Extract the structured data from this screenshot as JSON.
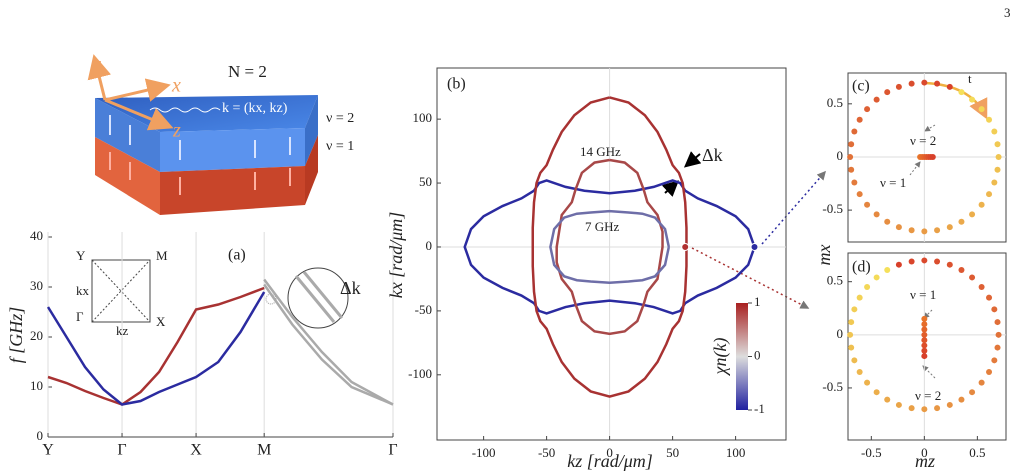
{
  "page_number": "3",
  "illustration": {
    "axis_labels": [
      "y",
      "x",
      "z"
    ],
    "layers": "N = 2",
    "wavevector": "k = (kx, kz)",
    "layer_labels": [
      "ν = 2",
      "ν = 1"
    ]
  },
  "chart_data": [
    {
      "type": "line",
      "ylabel": "f [GHz]",
      "xlim": [
        0,
        4.66
      ],
      "ylim": [
        0,
        40
      ],
      "yticks": [
        0,
        10,
        20,
        30,
        40
      ],
      "xticks": [
        {
          "value": 0,
          "label": "Y"
        },
        {
          "value": 1,
          "label": "Γ"
        },
        {
          "value": 2,
          "label": "X"
        },
        {
          "value": 2.92,
          "label": "M"
        },
        {
          "value": 4.66,
          "label": "Γ"
        }
      ],
      "grid": "x",
      "annotations": [
        "(a)",
        "Y",
        "M",
        "Γ",
        "X",
        "kx",
        "kz",
        "Δk"
      ],
      "series": [
        {
          "color": "#a83232",
          "x": [
            0,
            0.25,
            0.5,
            0.75,
            1,
            1.25,
            1.5,
            1.75,
            2,
            2.3,
            2.6,
            2.92
          ],
          "values": [
            12,
            10.8,
            9.2,
            7.8,
            6.5,
            9,
            13,
            19,
            25.5,
            26.5,
            28,
            29.8
          ]
        },
        {
          "color": "#2b2ba0",
          "x": [
            0,
            0.25,
            0.5,
            0.75,
            1,
            1.25,
            1.5,
            1.75,
            2,
            2.3,
            2.6,
            2.92
          ],
          "values": [
            26,
            20,
            14,
            9.5,
            6.5,
            7.2,
            9,
            10.5,
            12,
            15,
            21,
            29
          ]
        },
        {
          "color": "#aaaaaa",
          "x": [
            2.92,
            3.3,
            3.7,
            4.1,
            4.66
          ],
          "values": [
            31.5,
            24,
            17,
            11,
            6.5
          ]
        },
        {
          "color": "#aaaaaa",
          "x": [
            2.92,
            3.3,
            3.7,
            4.1,
            4.66
          ],
          "values": [
            30.5,
            22.5,
            15.5,
            10,
            6.5
          ]
        }
      ]
    },
    {
      "type": "line",
      "xlabel": "kz [rad/μm]",
      "ylabel": "kx [rad/μm]",
      "xlim": [
        -137,
        140
      ],
      "ylim": [
        -151,
        140
      ],
      "xticks": [
        -100,
        -50,
        0,
        50,
        100
      ],
      "yticks": [
        -100,
        -50,
        0,
        50,
        100
      ],
      "grid": "zero",
      "annotations": [
        "(b)",
        "14 GHz",
        "7 GHz",
        "Δk"
      ],
      "colorbar": {
        "label": "χn(k)",
        "lim": [
          -1,
          1
        ],
        "ticks": [
          1,
          0,
          -1
        ],
        "colors": [
          "#2020a0",
          "#dddddd",
          "#a82020"
        ]
      },
      "points": {
        "x": [
          60,
          115
        ],
        "values": [
          0,
          0
        ],
        "colors": [
          "#b03030",
          "#2b2ba0"
        ]
      },
      "series": [
        {
          "color": "#2b2ba0",
          "x": [
            115,
            110,
            100,
            85,
            70,
            60,
            56,
            50,
            35,
            20,
            0,
            -20,
            -35,
            -50,
            -56,
            -60,
            -70,
            -85,
            -100,
            -110,
            -115,
            -110,
            -100,
            -85,
            -70,
            -60,
            -56,
            -50,
            -35,
            -20,
            0,
            20,
            35,
            50,
            56,
            60,
            70,
            85,
            100,
            110,
            115
          ],
          "values": [
            0,
            14,
            24,
            32,
            38,
            44,
            50,
            52,
            47,
            44,
            42,
            44,
            47,
            52,
            50,
            44,
            38,
            32,
            24,
            14,
            0,
            -14,
            -24,
            -32,
            -38,
            -44,
            -50,
            -52,
            -47,
            -44,
            -42,
            -44,
            -47,
            -52,
            -50,
            -44,
            -38,
            -32,
            -24,
            -14,
            0
          ]
        },
        {
          "color": "#a83232",
          "x": [
            0,
            15,
            28,
            38,
            45,
            50,
            55,
            58,
            60,
            61,
            61,
            61,
            60,
            58,
            55,
            50,
            45,
            38,
            28,
            15,
            0,
            -15,
            -28,
            -38,
            -45,
            -50,
            -55,
            -58,
            -60,
            -61,
            -61,
            -61,
            -60,
            -58,
            -55,
            -50,
            -45,
            -38,
            -28,
            -15,
            0
          ],
          "values": [
            117,
            113,
            103,
            90,
            76,
            64,
            58,
            50,
            35,
            15,
            0,
            -15,
            -35,
            -50,
            -58,
            -64,
            -76,
            -90,
            -103,
            -113,
            -117,
            -113,
            -103,
            -90,
            -76,
            -64,
            -58,
            -50,
            -35,
            -15,
            0,
            15,
            35,
            50,
            58,
            64,
            76,
            90,
            103,
            113,
            117
          ]
        },
        {
          "color": "#a84848",
          "x": [
            0,
            12,
            22,
            27,
            30,
            38,
            42,
            42,
            38,
            30,
            27,
            22,
            12,
            0,
            -12,
            -22,
            -27,
            -30,
            -38,
            -42,
            -42,
            -38,
            -30,
            -27,
            -22,
            -12,
            0
          ],
          "values": [
            68,
            66,
            58,
            45,
            35,
            25,
            12,
            0,
            -25,
            -35,
            -45,
            -58,
            -66,
            -68,
            -66,
            -58,
            -45,
            -35,
            -25,
            -12,
            0,
            25,
            35,
            45,
            58,
            66,
            68
          ]
        },
        {
          "color": "#6e6ea8",
          "x": [
            47,
            44,
            36,
            26,
            15,
            0,
            -15,
            -26,
            -36,
            -44,
            -47,
            -44,
            -36,
            -26,
            -15,
            0,
            15,
            26,
            36,
            44,
            47
          ],
          "values": [
            0,
            14,
            23,
            26,
            27,
            28,
            27,
            26,
            23,
            14,
            0,
            -14,
            -23,
            -26,
            -27,
            -28,
            -27,
            -26,
            -23,
            -14,
            0
          ]
        }
      ]
    },
    {
      "type": "scatter",
      "ylabel": "mx",
      "xlim": [
        -0.72,
        0.77
      ],
      "ylim": [
        -0.8,
        0.79
      ],
      "yticks": [
        0.5,
        0,
        -0.5
      ],
      "grid": "zero",
      "annotations": [
        "(c)",
        "ν = 2",
        "ν = 1",
        "t"
      ],
      "series": [
        {
          "color_start": "#f5e05a",
          "color_end": "#d8402a",
          "x": [
            0.35,
            0.45,
            0.54,
            0.61,
            0.66,
            0.69,
            0.7,
            0.69,
            0.66,
            0.61,
            0.54,
            0.45,
            0.35,
            0.24,
            0.12,
            0,
            -0.12,
            -0.24,
            -0.35,
            -0.45,
            -0.54,
            -0.61,
            -0.66,
            -0.69,
            -0.7,
            -0.69,
            -0.66,
            -0.61,
            -0.54,
            -0.45,
            -0.35,
            -0.24,
            -0.12,
            0,
            0.12,
            0.24
          ],
          "values": [
            0.61,
            0.54,
            0.45,
            0.35,
            0.24,
            0.12,
            0,
            -0.12,
            -0.24,
            -0.35,
            -0.45,
            -0.54,
            -0.61,
            -0.66,
            -0.69,
            -0.7,
            -0.69,
            -0.66,
            -0.61,
            -0.54,
            -0.45,
            -0.35,
            -0.24,
            -0.12,
            0,
            0.12,
            0.24,
            0.35,
            0.45,
            0.54,
            0.61,
            0.66,
            0.69,
            0.7,
            0.69,
            0.66
          ]
        },
        {
          "color_start": "#e8742a",
          "color_end": "#d8402a",
          "x": [
            -0.04,
            -0.02,
            0,
            0.02,
            0.04,
            0.06,
            0.08
          ],
          "values": [
            0,
            0,
            0,
            0,
            0,
            0,
            0
          ]
        }
      ]
    },
    {
      "type": "scatter",
      "xlabel": "mz",
      "xlim": [
        -0.72,
        0.77
      ],
      "ylim": [
        -0.99,
        0.77
      ],
      "xticks": [
        -0.5,
        0,
        0.5
      ],
      "yticks": [
        0.5,
        0,
        -0.5
      ],
      "grid": "zero",
      "annotations": [
        "(d)",
        "ν = 1",
        "ν = 2"
      ],
      "series": [
        {
          "color_start": "#f5e05a",
          "color_end": "#d8402a",
          "x": [
            -0.35,
            -0.45,
            -0.54,
            -0.61,
            -0.66,
            -0.69,
            -0.7,
            -0.69,
            -0.66,
            -0.61,
            -0.54,
            -0.45,
            -0.35,
            -0.24,
            -0.12,
            0,
            0.12,
            0.24,
            0.35,
            0.45,
            0.54,
            0.61,
            0.66,
            0.69,
            0.7,
            0.69,
            0.66,
            0.61,
            0.54,
            0.45,
            0.35,
            0.24,
            0.12,
            0,
            -0.12,
            -0.24
          ],
          "values": [
            0.61,
            0.54,
            0.45,
            0.35,
            0.24,
            0.12,
            0,
            -0.12,
            -0.24,
            -0.35,
            -0.45,
            -0.54,
            -0.61,
            -0.66,
            -0.69,
            -0.7,
            -0.69,
            -0.66,
            -0.61,
            -0.54,
            -0.45,
            -0.35,
            -0.24,
            -0.12,
            0,
            0.12,
            0.24,
            0.35,
            0.45,
            0.54,
            0.61,
            0.66,
            0.69,
            0.7,
            0.69,
            0.66
          ]
        },
        {
          "color_start": "#e8742a",
          "color_end": "#d8402a",
          "x": [
            0,
            0,
            0,
            0,
            0,
            0,
            0,
            0
          ],
          "values": [
            0.15,
            0.1,
            0.05,
            0,
            -0.05,
            -0.1,
            -0.15,
            -0.2
          ]
        }
      ]
    }
  ]
}
